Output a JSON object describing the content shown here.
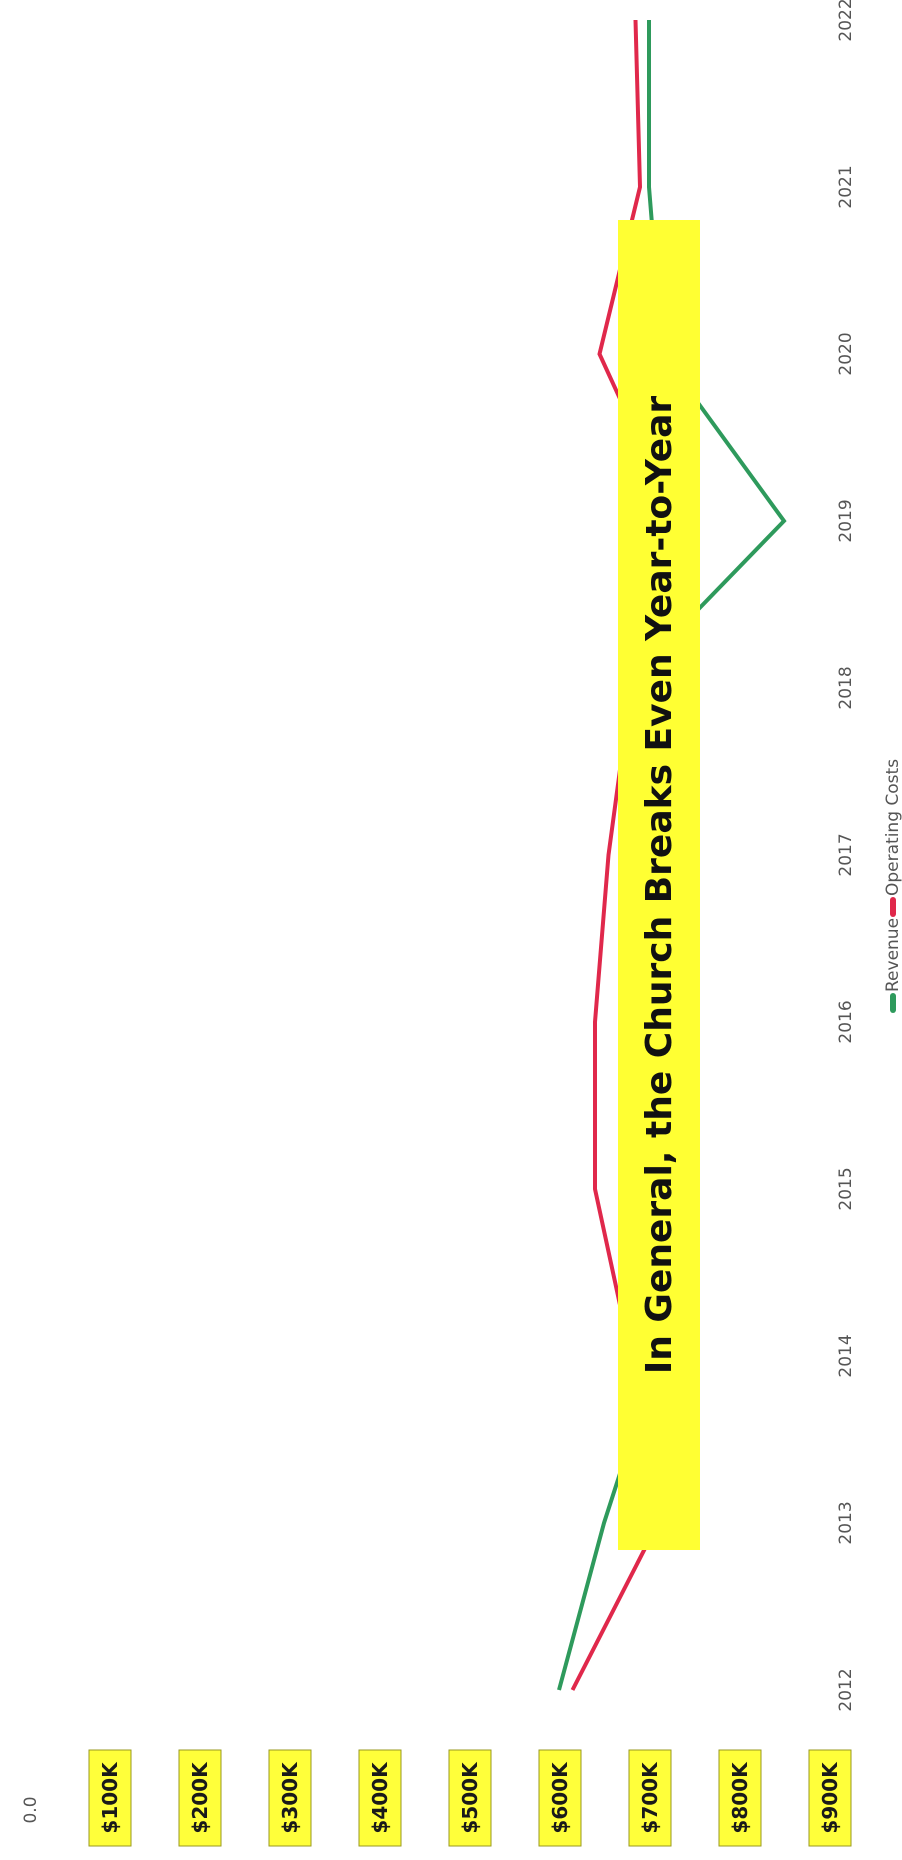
{
  "chart_data": {
    "type": "line",
    "x": [
      2012,
      2013,
      2014,
      2015,
      2016,
      2017,
      2018,
      2019,
      2020,
      2021,
      2022
    ],
    "x_tick_labels": [
      "2012",
      "2013",
      "2014",
      "2015",
      "2016",
      "2017",
      "2018",
      "2019",
      "2020",
      "2021",
      "2022"
    ],
    "y_zero_label": "0.0",
    "y_tick_labels": [
      "$100K",
      "$200K",
      "$300K",
      "$400K",
      "$500K",
      "$600K",
      "$700K",
      "$800K",
      "$900K"
    ],
    "y_tick_values": [
      100,
      200,
      300,
      400,
      500,
      600,
      700,
      800,
      900
    ],
    "ylim": [
      0,
      1000
    ],
    "series": [
      {
        "name": "Revenue",
        "color": "#2e9a5c",
        "values": [
          510,
          560,
          620,
          590,
          580,
          640,
          580,
          760,
          625,
          610,
          610
        ]
      },
      {
        "name": "Operating Costs",
        "color": "#e0284b",
        "values": [
          525,
          620,
          590,
          550,
          550,
          565,
          590,
          640,
          555,
          600,
          595
        ]
      }
    ],
    "legend_position": "bottom",
    "annotation": "In General, the Church Breaks Even Year-to-Year",
    "annotation_color": "#ffff33",
    "grid": false
  }
}
